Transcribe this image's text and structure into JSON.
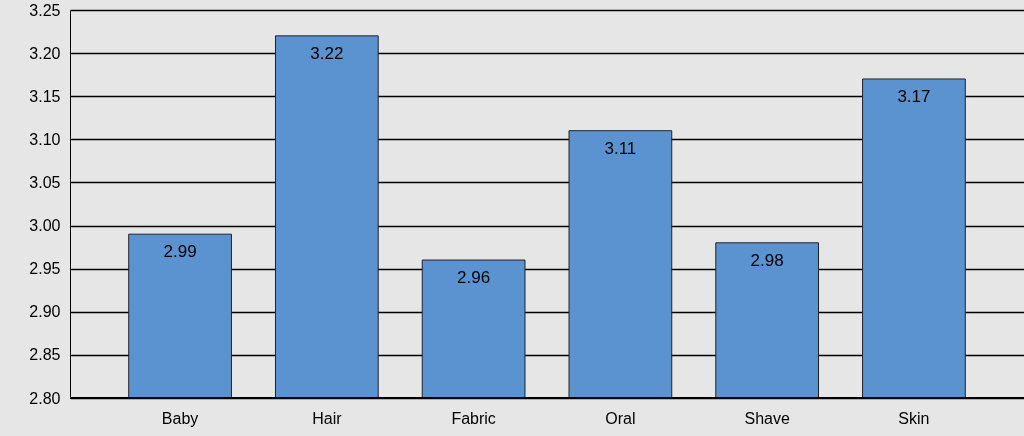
{
  "chart_data": {
    "type": "bar",
    "categories": [
      "Baby",
      "Hair",
      "Fabric",
      "Oral",
      "Shave",
      "Skin"
    ],
    "values": [
      2.99,
      3.22,
      2.96,
      3.11,
      2.98,
      3.17
    ],
    "color": "#5b93d0",
    "ylim": [
      2.8,
      3.25
    ],
    "yticks": [
      {
        "value": 2.8,
        "label": "2.80"
      },
      {
        "value": 2.85,
        "label": "2.85"
      },
      {
        "value": 2.9,
        "label": "2.90"
      },
      {
        "value": 2.95,
        "label": "2.95"
      },
      {
        "value": 3.0,
        "label": "3.00"
      },
      {
        "value": 3.05,
        "label": "3.05"
      },
      {
        "value": 3.1,
        "label": "3.10"
      },
      {
        "value": 3.15,
        "label": "3.15"
      },
      {
        "value": 3.2,
        "label": "3.20"
      },
      {
        "value": 3.25,
        "label": "3.25"
      }
    ],
    "grid": true,
    "data_labels": true
  }
}
